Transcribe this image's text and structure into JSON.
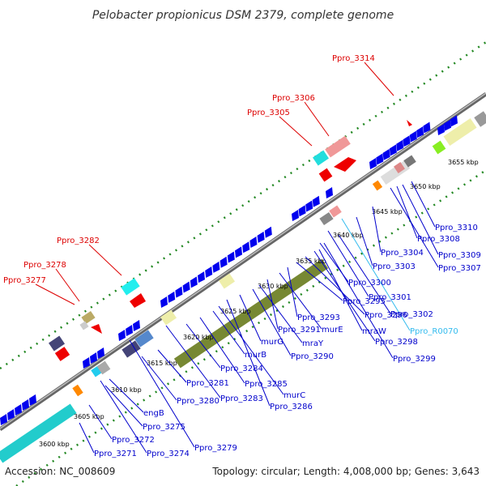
{
  "title": "Pelobacter propionicus DSM 2379, complete genome",
  "footer": {
    "accession": "Accession: NC_008609",
    "summary": "Topology: circular; Length: 4,008,000 bp; Genes: 3,643"
  },
  "colors": {
    "blue_label": "#0000cc",
    "red_label": "#dd0000",
    "cyan_label": "#33bbee",
    "backbone": "#888888",
    "gc_dots": "#228822",
    "cds_forward": "#0000ee",
    "cds_reverse": "#ee0000"
  },
  "kbp_ticks": [
    "3600 kbp",
    "3605 kbp",
    "3610 kbp",
    "3615 kbp",
    "3620 kbp",
    "3625 kbp",
    "3630 kbp",
    "3635 kbp",
    "3640 kbp",
    "3645 kbp",
    "3650 kbp",
    "3655 kbp"
  ],
  "reverse_labels": [
    "Ppro_3277",
    "Ppro_3278",
    "Ppro_3282",
    "Ppro_3305",
    "Ppro_3306",
    "Ppro_3314"
  ],
  "forward_labels": [
    "Ppro_3271",
    "Ppro_3272",
    "Ppro_3274",
    "Ppro_3275",
    "engB",
    "Ppro_3279",
    "Ppro_3280",
    "Ppro_3281",
    "Ppro_3283",
    "Ppro_3284",
    "Ppro_3285",
    "murB",
    "murC",
    "Ppro_3286",
    "murG",
    "Ppro_3290",
    "mraY",
    "Ppro_3291",
    "murE",
    "Ppro_3293",
    "Ppro_3295",
    "Ppro_3296",
    "mraW",
    "Ppro_3298",
    "Ppro_3299",
    "Ppro_3300",
    "Ppro_3301",
    "Ppro_3302",
    "Ppro_R0070",
    "Ppro_3303",
    "Ppro_3304",
    "Ppro_3307",
    "Ppro_3308",
    "Ppro_3309",
    "Ppro_3310"
  ]
}
